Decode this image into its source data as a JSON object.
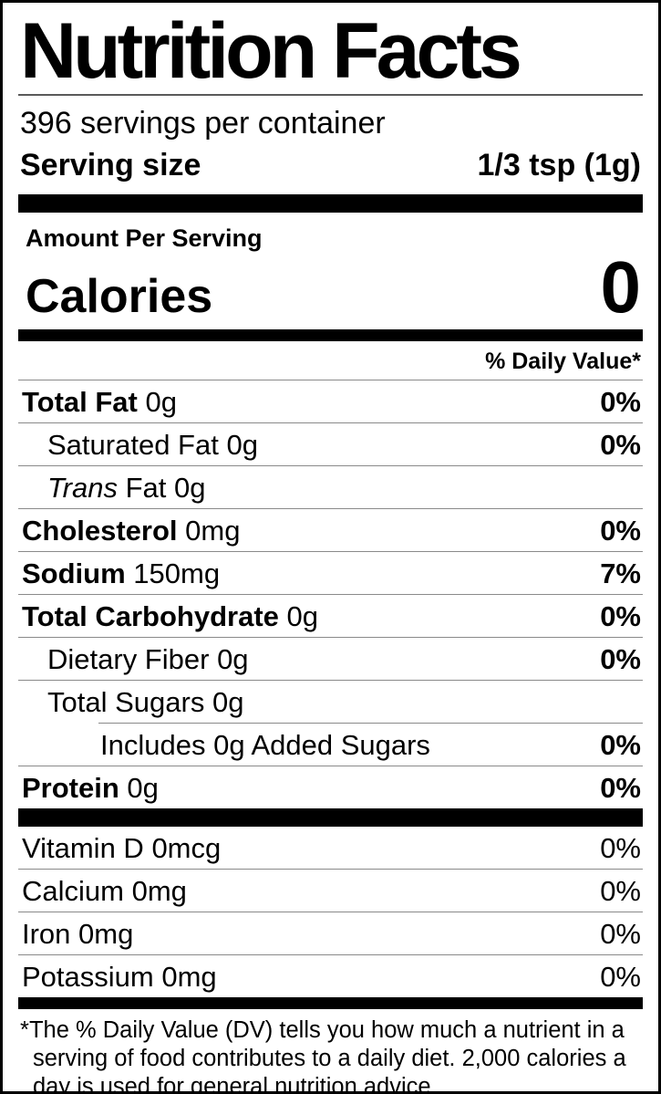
{
  "label": {
    "title": "Nutrition Facts",
    "servings_per_container": "396 servings per container",
    "serving_size_label": "Serving size",
    "serving_size_value": "1/3 tsp (1g)",
    "amount_per_serving": "Amount Per Serving",
    "calories_label": "Calories",
    "calories_value": "0",
    "daily_value_header": "% Daily Value*",
    "rows": [
      {
        "name": "Total Fat",
        "amount": "0g",
        "dv": "0%"
      },
      {
        "name": "Saturated Fat",
        "amount": "0g",
        "dv": "0%"
      },
      {
        "name_italic": "Trans",
        "name": "Fat",
        "amount": "0g",
        "dv": ""
      },
      {
        "name": "Cholesterol",
        "amount": "0mg",
        "dv": "0%"
      },
      {
        "name": "Sodium",
        "amount": "150mg",
        "dv": "7%"
      },
      {
        "name": "Total Carbohydrate",
        "amount": "0g",
        "dv": "0%"
      },
      {
        "name": "Dietary Fiber",
        "amount": "0g",
        "dv": "0%"
      },
      {
        "name": "Total Sugars",
        "amount": "0g",
        "dv": ""
      },
      {
        "name": "Includes 0g Added Sugars",
        "amount": "",
        "dv": "0%"
      },
      {
        "name": "Protein",
        "amount": "0g",
        "dv": "0%"
      }
    ],
    "micronutrients": [
      {
        "name": "Vitamin D",
        "amount": "0mcg",
        "dv": "0%"
      },
      {
        "name": "Calcium",
        "amount": "0mg",
        "dv": "0%"
      },
      {
        "name": "Iron",
        "amount": "0mg",
        "dv": "0%"
      },
      {
        "name": "Potassium",
        "amount": "0mg",
        "dv": "0%"
      }
    ],
    "footnote_marker": "*",
    "footnote_text": "The % Daily Value (DV) tells you how much a nutrient in a serving of food contributes to a daily diet. 2,000 calories a day is used for general nutrition advice.",
    "colors": {
      "text": "#000000",
      "background": "#ffffff",
      "divider": "#8a8a8a",
      "bar": "#000000"
    }
  }
}
